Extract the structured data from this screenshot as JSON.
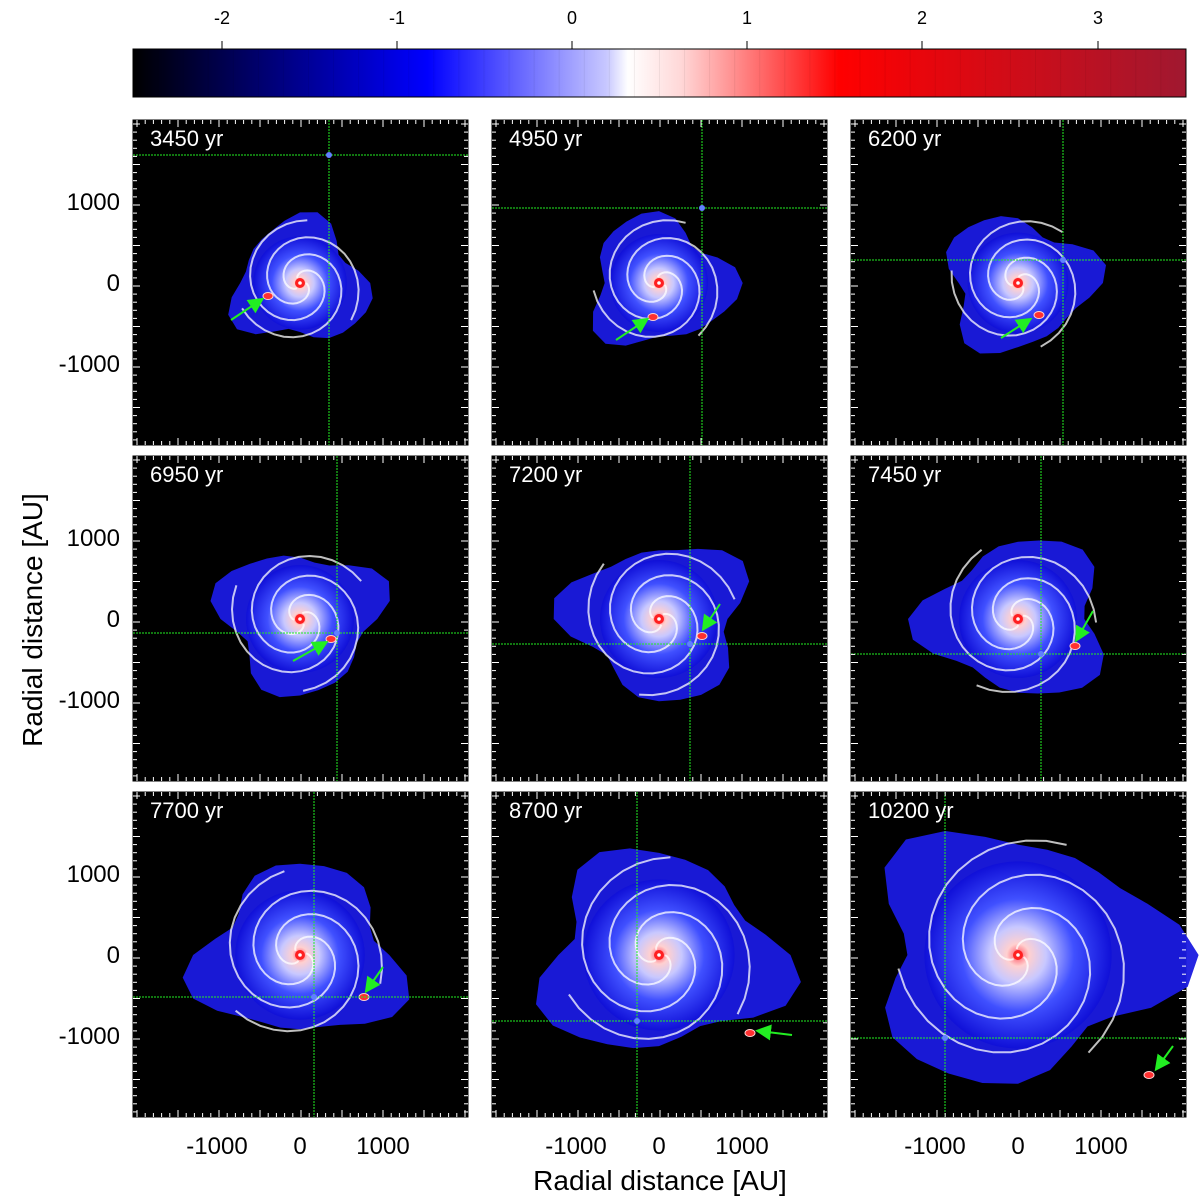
{
  "colorbar": {
    "ticks": [
      "-2",
      "-1",
      "0",
      "1",
      "2",
      "3"
    ],
    "colors": [
      "#000000",
      "#0000ff",
      "#ffffff",
      "#ff0000",
      "#a01830"
    ]
  },
  "axes": {
    "xlabel": "Radial distance [AU]",
    "ylabel": "Radial distance [AU]",
    "xticks": [
      "-1000",
      "0",
      "1000"
    ],
    "yticks": [
      "1000",
      "0",
      "-1000"
    ]
  },
  "panels": [
    {
      "time": "3450 yr"
    },
    {
      "time": "4950 yr"
    },
    {
      "time": "6200 yr"
    },
    {
      "time": "6950 yr"
    },
    {
      "time": "7200 yr"
    },
    {
      "time": "7450 yr"
    },
    {
      "time": "7700 yr"
    },
    {
      "time": "8700 yr"
    },
    {
      "time": "10200 yr"
    }
  ]
}
